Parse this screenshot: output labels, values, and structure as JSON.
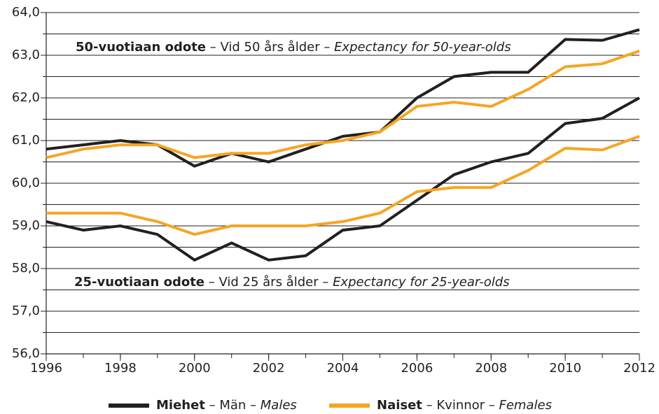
{
  "chart_data": {
    "type": "line",
    "x": [
      1996,
      1997,
      1998,
      1999,
      2000,
      2001,
      2002,
      2003,
      2004,
      2005,
      2006,
      2007,
      2008,
      2009,
      2010,
      2011,
      2012
    ],
    "xlim": [
      1996,
      2012
    ],
    "xticks": [
      1996,
      1998,
      2000,
      2002,
      2004,
      2006,
      2008,
      2010,
      2012
    ],
    "ylim": [
      56,
      64
    ],
    "yticks": [
      {
        "value": 56,
        "label": "56,0"
      },
      {
        "value": 57,
        "label": "57,0"
      },
      {
        "value": 58,
        "label": "58,0"
      },
      {
        "value": 59,
        "label": "59,0"
      },
      {
        "value": 60,
        "label": "60,0"
      },
      {
        "value": 61,
        "label": "61,0"
      },
      {
        "value": 62,
        "label": "62,0"
      },
      {
        "value": 63,
        "label": "63,0"
      },
      {
        "value": 64,
        "label": "64,0"
      }
    ],
    "minor_yticks": [
      56.5,
      57.5,
      58.5,
      59.5,
      60.5,
      61.5,
      62.5,
      63.5
    ],
    "grid": true,
    "legend": [
      {
        "parts": [
          "Miehet",
          " – Män – ",
          "Males"
        ],
        "color": "#231f20"
      },
      {
        "parts": [
          "Naiset",
          " – Kvinnor – ",
          "Females"
        ],
        "color": "#f5a623"
      }
    ],
    "annotations": [
      {
        "parts": [
          "50-vuotiaan odote",
          " – Vid 50 års ålder – ",
          "Expectancy for 50-year-olds"
        ]
      },
      {
        "parts": [
          "25-vuotiaan odote",
          " – Vid 25 års ålder – ",
          "Expectancy for 25-year-olds"
        ]
      }
    ],
    "series": [
      {
        "legend": 0,
        "values": [
          60.8,
          60.9,
          61.0,
          60.9,
          60.4,
          60.7,
          60.5,
          60.8,
          61.1,
          61.2,
          62.0,
          62.5,
          62.6,
          62.6,
          63.37,
          63.35,
          63.6
        ]
      },
      {
        "legend": 1,
        "values": [
          60.6,
          60.8,
          60.9,
          60.9,
          60.6,
          60.7,
          60.7,
          60.9,
          61.0,
          61.2,
          61.8,
          61.9,
          61.8,
          62.2,
          62.73,
          62.8,
          63.1
        ]
      },
      {
        "legend": 0,
        "values": [
          59.1,
          58.9,
          59.0,
          58.8,
          58.2,
          58.6,
          58.2,
          58.3,
          58.9,
          59.0,
          59.6,
          60.2,
          60.5,
          60.7,
          61.4,
          61.52,
          62.0
        ]
      },
      {
        "legend": 1,
        "values": [
          59.3,
          59.3,
          59.3,
          59.1,
          58.8,
          59.0,
          59.0,
          59.0,
          59.1,
          59.3,
          59.8,
          59.9,
          59.9,
          60.3,
          60.82,
          60.78,
          61.1
        ]
      }
    ]
  }
}
